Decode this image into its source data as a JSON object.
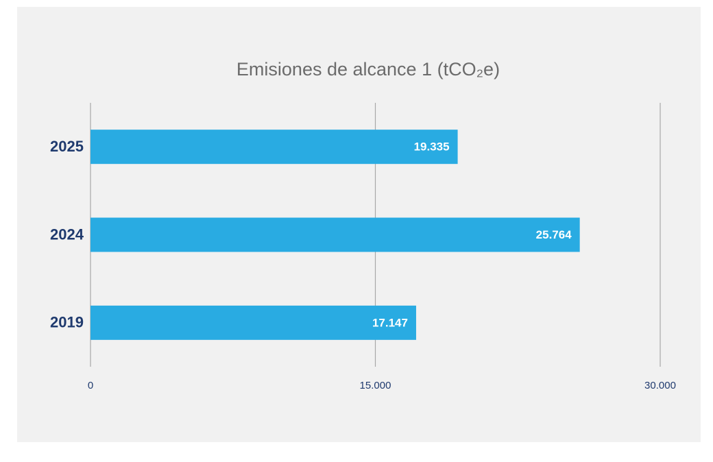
{
  "chart_data": {
    "type": "bar",
    "orientation": "horizontal",
    "title": "Emisiones de alcance 1 (tCO₂e)",
    "categories": [
      "2025",
      "2024",
      "2019"
    ],
    "values": [
      19335,
      25764,
      17147
    ],
    "value_labels": [
      "19.335",
      "25.764",
      "17.147"
    ],
    "color": "#29abe2",
    "xlim": [
      0,
      30000
    ],
    "xticks": [
      0,
      {
        "value": 15000,
        "label": "15.000"
      },
      {
        "value": 30000,
        "label": "30.000"
      }
    ],
    "grid": true
  }
}
